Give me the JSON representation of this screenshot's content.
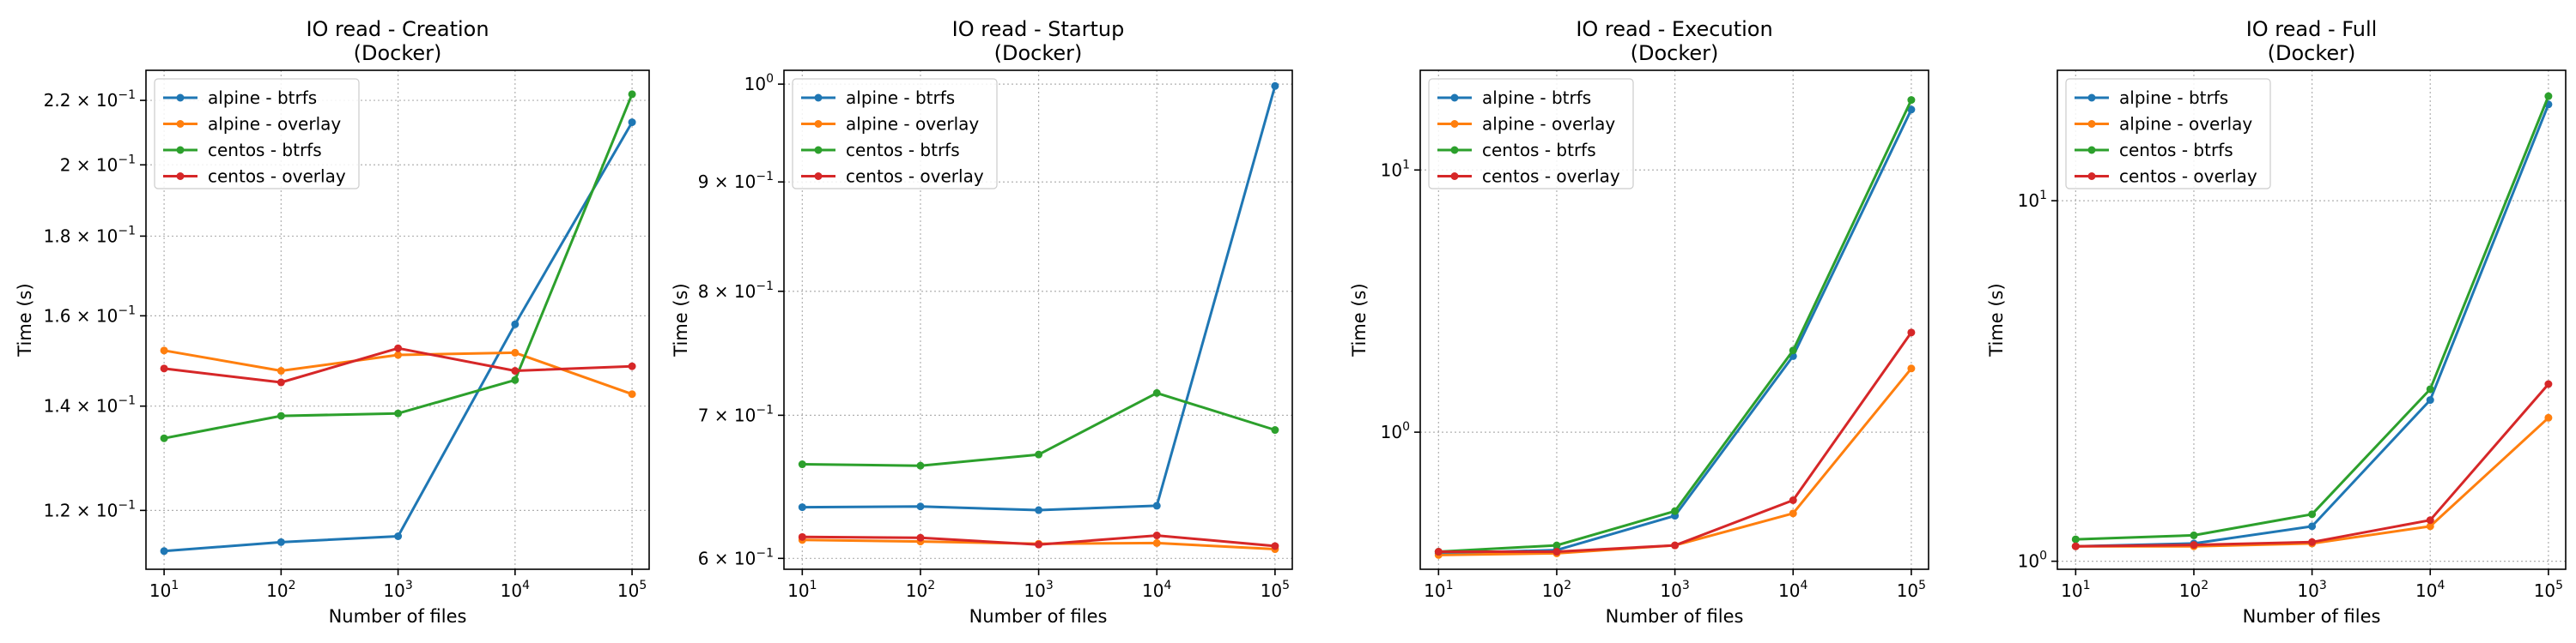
{
  "figure": {
    "charts": [
      {
        "title_line1": "IO read - Creation",
        "title_line2": "(Docker)",
        "xlabel": "Number of files",
        "ylabel": "Time (s)"
      },
      {
        "title_line1": "IO read - Startup",
        "title_line2": "(Docker)",
        "xlabel": "Number of files",
        "ylabel": "Time (s)"
      },
      {
        "title_line1": "IO read - Execution",
        "title_line2": "(Docker)",
        "xlabel": "Number of files",
        "ylabel": "Time (s)"
      },
      {
        "title_line1": "IO read - Full",
        "title_line2": "(Docker)",
        "xlabel": "Number of files",
        "ylabel": "Time (s)"
      }
    ]
  },
  "chart_data": [
    {
      "type": "line",
      "title": "IO read - Creation\n(Docker)",
      "xlabel": "Number of files",
      "ylabel": "Time (s)",
      "xscale": "log",
      "yscale": "log",
      "x": [
        10,
        100,
        1000,
        10000,
        100000
      ],
      "xlim": [
        7,
        140000
      ],
      "ylim": [
        0.11,
        0.23
      ],
      "x_ticks": [
        {
          "v": 10,
          "b": "10",
          "e": "1"
        },
        {
          "v": 100,
          "b": "10",
          "e": "2"
        },
        {
          "v": 1000,
          "b": "10",
          "e": "3"
        },
        {
          "v": 10000,
          "b": "10",
          "e": "4"
        },
        {
          "v": 100000,
          "b": "10",
          "e": "5"
        }
      ],
      "y_ticks": [
        {
          "v": 0.12,
          "b": "1.2 × 10",
          "e": "−1"
        },
        {
          "v": 0.14,
          "b": "1.4 × 10",
          "e": "−1"
        },
        {
          "v": 0.16,
          "b": "1.6 × 10",
          "e": "−1"
        },
        {
          "v": 0.18,
          "b": "1.8 × 10",
          "e": "−1"
        },
        {
          "v": 0.2,
          "b": "2 × 10",
          "e": "−1"
        },
        {
          "v": 0.22,
          "b": "2.2 × 10",
          "e": "−1"
        }
      ],
      "grid": true,
      "legend_position": "upper-left",
      "series": [
        {
          "name": "alpine - btrfs",
          "color": "#1f77b4",
          "values": [
            0.113,
            0.1145,
            0.1155,
            0.158,
            0.213
          ]
        },
        {
          "name": "alpine - overlay",
          "color": "#ff7f0e",
          "values": [
            0.152,
            0.1475,
            0.151,
            0.1515,
            0.1425
          ]
        },
        {
          "name": "centos - btrfs",
          "color": "#2ca02c",
          "values": [
            0.1335,
            0.138,
            0.1385,
            0.1455,
            0.222
          ]
        },
        {
          "name": "centos - overlay",
          "color": "#d62728",
          "values": [
            0.148,
            0.145,
            0.1525,
            0.1475,
            0.1485
          ]
        }
      ]
    },
    {
      "type": "line",
      "title": "IO read - Startup\n(Docker)",
      "xlabel": "Number of files",
      "ylabel": "Time (s)",
      "xscale": "log",
      "yscale": "log",
      "x": [
        10,
        100,
        1000,
        10000,
        100000
      ],
      "xlim": [
        7,
        140000
      ],
      "ylim": [
        0.593,
        1.015
      ],
      "x_ticks": [
        {
          "v": 10,
          "b": "10",
          "e": "1"
        },
        {
          "v": 100,
          "b": "10",
          "e": "2"
        },
        {
          "v": 1000,
          "b": "10",
          "e": "3"
        },
        {
          "v": 10000,
          "b": "10",
          "e": "4"
        },
        {
          "v": 100000,
          "b": "10",
          "e": "5"
        }
      ],
      "y_ticks": [
        {
          "v": 0.6,
          "b": "6 × 10",
          "e": "−1"
        },
        {
          "v": 0.7,
          "b": "7 × 10",
          "e": "−1"
        },
        {
          "v": 0.8,
          "b": "8 × 10",
          "e": "−1"
        },
        {
          "v": 0.9,
          "b": "9 × 10",
          "e": "−1"
        },
        {
          "v": 1.0,
          "b": "10",
          "e": "0"
        }
      ],
      "grid": true,
      "legend_position": "upper-left",
      "series": [
        {
          "name": "alpine - btrfs",
          "color": "#1f77b4",
          "values": [
            0.634,
            0.6345,
            0.632,
            0.635,
            0.998
          ]
        },
        {
          "name": "alpine - overlay",
          "color": "#ff7f0e",
          "values": [
            0.612,
            0.611,
            0.6095,
            0.61,
            0.606
          ]
        },
        {
          "name": "centos - btrfs",
          "color": "#2ca02c",
          "values": [
            0.664,
            0.663,
            0.671,
            0.717,
            0.689
          ]
        },
        {
          "name": "centos - overlay",
          "color": "#d62728",
          "values": [
            0.614,
            0.6135,
            0.609,
            0.615,
            0.608
          ]
        }
      ]
    },
    {
      "type": "line",
      "title": "IO read - Execution\n(Docker)",
      "xlabel": "Number of files",
      "ylabel": "Time (s)",
      "xscale": "log",
      "yscale": "log",
      "x": [
        10,
        100,
        1000,
        10000,
        100000
      ],
      "xlim": [
        7,
        140000
      ],
      "ylim": [
        0.3,
        24
      ],
      "x_ticks": [
        {
          "v": 10,
          "b": "10",
          "e": "1"
        },
        {
          "v": 100,
          "b": "10",
          "e": "2"
        },
        {
          "v": 1000,
          "b": "10",
          "e": "3"
        },
        {
          "v": 10000,
          "b": "10",
          "e": "4"
        },
        {
          "v": 100000,
          "b": "10",
          "e": "5"
        }
      ],
      "y_ticks": [
        {
          "v": 1,
          "b": "10",
          "e": "0"
        },
        {
          "v": 10,
          "b": "10",
          "e": "1"
        }
      ],
      "grid": true,
      "legend_position": "upper-left",
      "series": [
        {
          "name": "alpine - btrfs",
          "color": "#1f77b4",
          "values": [
            0.345,
            0.355,
            0.48,
            1.95,
            17
          ]
        },
        {
          "name": "alpine - overlay",
          "color": "#ff7f0e",
          "values": [
            0.34,
            0.345,
            0.37,
            0.49,
            1.75
          ]
        },
        {
          "name": "centos - btrfs",
          "color": "#2ca02c",
          "values": [
            0.35,
            0.37,
            0.5,
            2.05,
            18.5
          ]
        },
        {
          "name": "centos - overlay",
          "color": "#d62728",
          "values": [
            0.35,
            0.35,
            0.37,
            0.55,
            2.4
          ]
        }
      ]
    },
    {
      "type": "line",
      "title": "IO read - Full\n(Docker)",
      "xlabel": "Number of files",
      "ylabel": "Time (s)",
      "xscale": "log",
      "yscale": "log",
      "x": [
        10,
        100,
        1000,
        10000,
        100000
      ],
      "xlim": [
        7,
        140000
      ],
      "ylim": [
        0.95,
        23
      ],
      "x_ticks": [
        {
          "v": 10,
          "b": "10",
          "e": "1"
        },
        {
          "v": 100,
          "b": "10",
          "e": "2"
        },
        {
          "v": 1000,
          "b": "10",
          "e": "3"
        },
        {
          "v": 10000,
          "b": "10",
          "e": "4"
        },
        {
          "v": 100000,
          "b": "10",
          "e": "5"
        }
      ],
      "y_ticks": [
        {
          "v": 1,
          "b": "10",
          "e": "0"
        },
        {
          "v": 10,
          "b": "10",
          "e": "1"
        }
      ],
      "grid": true,
      "legend_position": "upper-left",
      "series": [
        {
          "name": "alpine - btrfs",
          "color": "#1f77b4",
          "values": [
            1.1,
            1.12,
            1.25,
            2.8,
            18.5
          ]
        },
        {
          "name": "alpine - overlay",
          "color": "#ff7f0e",
          "values": [
            1.1,
            1.1,
            1.12,
            1.25,
            2.5
          ]
        },
        {
          "name": "centos - btrfs",
          "color": "#2ca02c",
          "values": [
            1.15,
            1.18,
            1.35,
            3.0,
            19.5
          ]
        },
        {
          "name": "centos - overlay",
          "color": "#d62728",
          "values": [
            1.1,
            1.11,
            1.13,
            1.3,
            3.1
          ]
        }
      ]
    }
  ]
}
